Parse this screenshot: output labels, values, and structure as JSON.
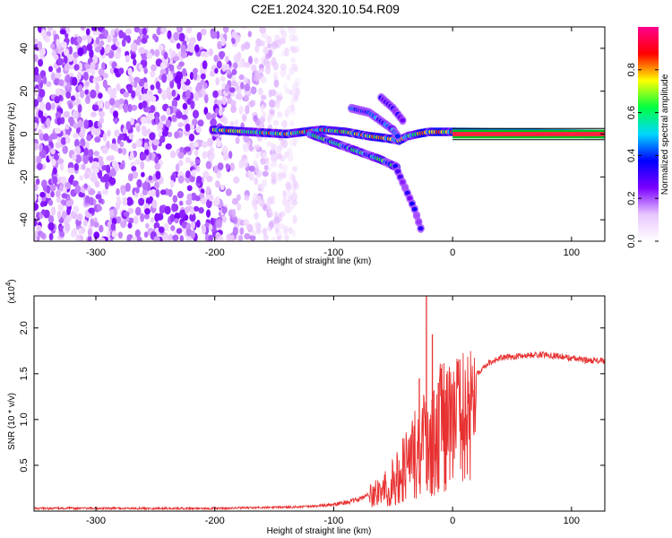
{
  "title": "C2E1.2024.320.10.54.R09",
  "chart_data": [
    {
      "type": "heatmap",
      "xlabel": "Height of straight line (km)",
      "ylabel": "Frequency (Hz)",
      "xlim": [
        -352,
        128
      ],
      "ylim": [
        -50,
        50
      ],
      "x_ticks": [
        -300,
        -200,
        -100,
        0,
        100
      ],
      "x_tick_labels": [
        "-300",
        "-200",
        "-100",
        "0",
        "100"
      ],
      "y_ticks": [
        -40,
        -20,
        0,
        20,
        40
      ],
      "y_tick_labels": [
        "-40",
        "-20",
        "0",
        "20",
        "40"
      ],
      "colorbar": {
        "label": "Normalized spectral amplitude",
        "range": [
          0,
          1
        ],
        "ticks": [
          0.0,
          0.2,
          0.4,
          0.6,
          0.8
        ],
        "tick_labels": [
          "0.0",
          "0.2",
          "0.4",
          "0.6",
          "0.8"
        ],
        "colormap": [
          "#ffffff",
          "#e9c6ff",
          "#7a00ff",
          "#0000ff",
          "#00d8ff",
          "#00ff40",
          "#ffff00",
          "#ff0000",
          "#ff0090"
        ]
      },
      "features": [
        {
          "name": "noise",
          "x_range": [
            -352,
            -130
          ],
          "y_range": [
            -50,
            50
          ],
          "level": 0.2
        },
        {
          "name": "main-line",
          "x": [
            -200,
            -170,
            -140,
            -110,
            -90,
            -70,
            -55,
            -45,
            -38,
            -30,
            -20,
            -10,
            0,
            128
          ],
          "y": [
            2,
            1,
            0,
            2,
            1,
            -1,
            -2,
            -3,
            -1,
            0,
            1,
            1,
            1,
            0
          ],
          "level": 0.75
        },
        {
          "name": "branch-lower",
          "x": [
            -120,
            -100,
            -80,
            -60,
            -45
          ],
          "y": [
            0,
            -4,
            -8,
            -12,
            -16
          ],
          "level": 0.55
        },
        {
          "name": "branch-upper",
          "x": [
            -85,
            -70,
            -60,
            -50,
            -45
          ],
          "y": [
            12,
            10,
            6,
            2,
            -2
          ],
          "level": 0.45
        },
        {
          "name": "spur-down",
          "x": [
            -48,
            -40,
            -32,
            -25
          ],
          "y": [
            -15,
            -25,
            -35,
            -47
          ],
          "level": 0.3
        },
        {
          "name": "spur-up",
          "x": [
            -60,
            -50,
            -40
          ],
          "y": [
            17,
            12,
            5
          ],
          "level": 0.3
        }
      ]
    },
    {
      "type": "line",
      "xlabel": "Height of straight line (km)",
      "ylabel": "SNR (10 * v/v)",
      "y_multiplier": "x10^4",
      "xlim": [
        -352,
        128
      ],
      "ylim": [
        0,
        2.35
      ],
      "x_ticks": [
        -300,
        -200,
        -100,
        0,
        100
      ],
      "x_tick_labels": [
        "-300",
        "-200",
        "-100",
        "0",
        "100"
      ],
      "y_ticks": [
        0.5,
        1.0,
        1.5,
        2.0
      ],
      "y_tick_labels": [
        "0.5",
        "1.0",
        "1.5",
        "2.0"
      ],
      "series": [
        {
          "color": "#e83030",
          "x": [
            -352,
            -300,
            -200,
            -150,
            -120,
            -100,
            -80,
            -60,
            -50,
            -40,
            -30,
            -20,
            -10,
            0,
            10,
            20,
            30,
            40,
            60,
            80,
            100,
            110,
            128
          ],
          "y": [
            0.03,
            0.03,
            0.03,
            0.04,
            0.05,
            0.07,
            0.12,
            0.25,
            0.4,
            0.55,
            0.75,
            0.95,
            1.05,
            1.15,
            1.35,
            1.5,
            1.62,
            1.67,
            1.7,
            1.71,
            1.67,
            1.65,
            1.64
          ],
          "spikes": [
            {
              "x": -22,
              "y": 2.35
            },
            {
              "x": -17,
              "y": 1.93
            },
            {
              "x": -28,
              "y": 1.45
            },
            {
              "x": -12,
              "y": 1.4
            },
            {
              "x": -6,
              "y": 1.32
            }
          ]
        }
      ]
    }
  ]
}
